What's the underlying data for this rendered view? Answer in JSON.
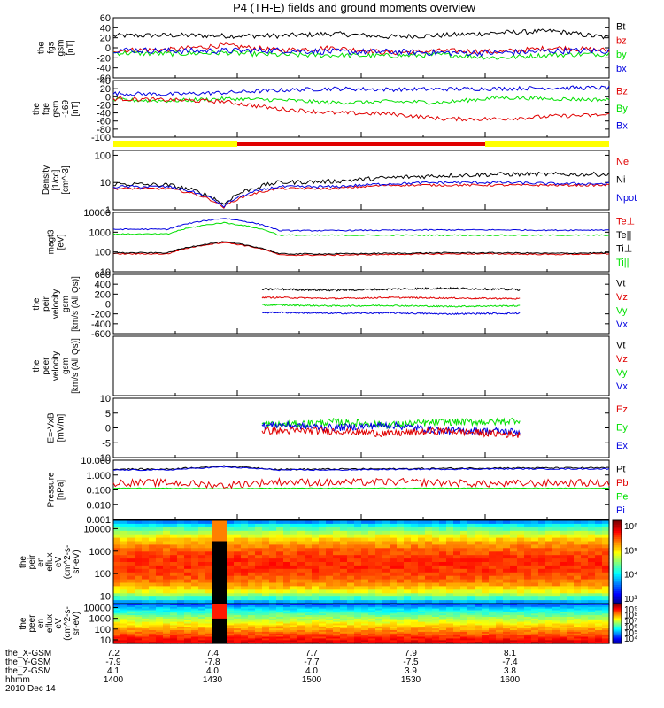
{
  "title": "P4 (TH-E) fields and ground moments overview",
  "colors": {
    "black": "#000000",
    "red": "#e00000",
    "green": "#00e000",
    "blue": "#0000e0",
    "yellow": "#ffff00",
    "bar_red": "#e00000"
  },
  "panels": [
    {
      "id": "p1",
      "ylabel": [
        "the",
        "fgs",
        "gsm",
        "[nT]"
      ],
      "ticks": [
        "60",
        "40",
        "20",
        "0",
        "-20",
        "-40",
        "-60"
      ],
      "tick_vals": [
        60,
        40,
        20,
        0,
        -20,
        -40,
        -60
      ],
      "ylim": [
        -60,
        60
      ],
      "log": false,
      "legend": [
        {
          "t": "Bt",
          "c": "black"
        },
        {
          "t": "bz",
          "c": "red"
        },
        {
          "t": "by",
          "c": "green"
        },
        {
          "t": "bx",
          "c": "blue"
        }
      ],
      "series": [
        {
          "c": "black",
          "lvl": [
            24,
            25,
            24,
            24,
            28,
            22,
            25,
            30,
            33,
            20
          ],
          "noise": 5
        },
        {
          "c": "red",
          "lvl": [
            -5,
            -4,
            5,
            -5,
            0,
            -10,
            -6,
            -8,
            0,
            -5
          ],
          "noise": 5
        },
        {
          "c": "green",
          "lvl": [
            -10,
            -12,
            -10,
            -14,
            -15,
            -16,
            -14,
            -20,
            -14,
            -12
          ],
          "noise": 5
        },
        {
          "c": "blue",
          "lvl": [
            -4,
            -6,
            -6,
            -5,
            -8,
            -8,
            -10,
            -10,
            -6,
            -6
          ],
          "noise": 6
        }
      ]
    },
    {
      "id": "p2",
      "ylabel": [
        "the",
        "fge",
        "gsm",
        "-169",
        "[nT]"
      ],
      "ticks": [
        "40",
        "20",
        "0",
        "-20",
        "-40",
        "-60",
        "-80",
        "-100"
      ],
      "tick_vals": [
        40,
        20,
        0,
        -20,
        -40,
        -60,
        -80,
        -100
      ],
      "ylim": [
        -100,
        40
      ],
      "log": false,
      "legend": [
        {
          "t": "Bz",
          "c": "red"
        },
        {
          "t": "By",
          "c": "green"
        },
        {
          "t": "Bx",
          "c": "blue"
        }
      ],
      "series": [
        {
          "c": "blue",
          "lvl": [
            8,
            6,
            10,
            16,
            20,
            18,
            19,
            20,
            22,
            22
          ],
          "noise": 5
        },
        {
          "c": "green",
          "lvl": [
            -8,
            -10,
            -5,
            -8,
            -15,
            -12,
            -14,
            -2,
            -5,
            -8
          ],
          "noise": 5
        },
        {
          "c": "red",
          "lvl": [
            -5,
            -8,
            -12,
            -30,
            -40,
            -42,
            -55,
            -55,
            -48,
            -45
          ],
          "noise": 5
        }
      ]
    },
    {
      "id": "p3",
      "ylabel": [
        "Density",
        "[1/cc]",
        "[cm^-3]"
      ],
      "ticks": [
        "100",
        "10",
        "1"
      ],
      "tick_vals": [
        100,
        10,
        1
      ],
      "ylim": [
        1,
        150
      ],
      "log": true,
      "legend": [
        {
          "t": "Ne",
          "c": "red"
        },
        {
          "t": "Ni",
          "c": "black"
        },
        {
          "t": "Npot",
          "c": "blue"
        }
      ],
      "series": [
        {
          "c": "black",
          "lvl": [
            9,
            8,
            1.5,
            10,
            11,
            15,
            18,
            20,
            20,
            20
          ],
          "noise": 0.08
        },
        {
          "c": "red",
          "lvl": [
            6,
            6,
            1.2,
            6,
            6,
            8,
            8,
            8,
            8,
            8
          ],
          "noise": 0.04
        },
        {
          "c": "blue",
          "lvl": [
            7,
            7,
            1.3,
            7,
            7,
            9,
            10,
            10,
            9,
            9
          ],
          "noise": 0.05
        }
      ]
    },
    {
      "id": "p4",
      "ylabel": [
        "magt3",
        "[eV]"
      ],
      "ticks": [
        "10000",
        "1000",
        "100",
        "10"
      ],
      "tick_vals": [
        10000,
        1000,
        100,
        10
      ],
      "ylim": [
        10,
        10000
      ],
      "log": true,
      "legend": [
        {
          "t": "Te⊥",
          "c": "red"
        },
        {
          "t": "Te||",
          "c": "black"
        },
        {
          "t": "Ti⊥",
          "c": "black"
        },
        {
          "t": "Ti||",
          "c": "green"
        }
      ],
      "series": [
        {
          "c": "blue",
          "lvl": [
            1400,
            1400,
            5000,
            1200,
            1200,
            1250,
            1300,
            1300,
            1250,
            1300
          ],
          "noise": 0.03
        },
        {
          "c": "green",
          "lvl": [
            800,
            800,
            3000,
            700,
            700,
            700,
            700,
            700,
            700,
            700
          ],
          "noise": 0.03
        },
        {
          "c": "red",
          "lvl": [
            80,
            80,
            300,
            70,
            70,
            75,
            80,
            80,
            75,
            80
          ],
          "noise": 0.03
        },
        {
          "c": "black",
          "lvl": [
            90,
            90,
            320,
            80,
            80,
            85,
            90,
            90,
            85,
            90
          ],
          "noise": 0.03
        }
      ]
    },
    {
      "id": "p5",
      "ylabel": [
        "the",
        "peir",
        "velocity",
        "gsm",
        "[km/s (All Qs)]"
      ],
      "ticks": [
        "600",
        "400",
        "200",
        "0",
        "-200",
        "-400",
        "-600"
      ],
      "tick_vals": [
        600,
        400,
        200,
        0,
        -200,
        -400,
        -600
      ],
      "ylim": [
        -600,
        600
      ],
      "log": false,
      "legend": [
        {
          "t": "Vt",
          "c": "black"
        },
        {
          "t": "Vz",
          "c": "red"
        },
        {
          "t": "Vy",
          "c": "green"
        },
        {
          "t": "Vx",
          "c": "blue"
        }
      ],
      "xstart": 0.3,
      "xend": 0.82,
      "series": [
        {
          "c": "black",
          "lvl": [
            280,
            270,
            290,
            300,
            280,
            300,
            320,
            300,
            280,
            290
          ],
          "noise": 20
        },
        {
          "c": "red",
          "lvl": [
            120,
            110,
            120,
            130,
            110,
            130,
            120,
            110,
            100,
            110
          ],
          "noise": 15
        },
        {
          "c": "green",
          "lvl": [
            -30,
            -40,
            -30,
            -20,
            -40,
            -30,
            -50,
            -40,
            -30,
            -40
          ],
          "noise": 15
        },
        {
          "c": "blue",
          "lvl": [
            -170,
            -180,
            -180,
            -170,
            -190,
            -180,
            -200,
            -190,
            -180,
            -190
          ],
          "noise": 15
        }
      ]
    },
    {
      "id": "p6",
      "ylabel": [
        "the",
        "peer",
        "velocity",
        "gsm",
        "[km/s (All Qs)]"
      ],
      "ticks": [],
      "tick_vals": [],
      "ylim": [
        -1,
        1
      ],
      "log": false,
      "legend": [
        {
          "t": "Vt",
          "c": "black"
        },
        {
          "t": "Vz",
          "c": "red"
        },
        {
          "t": "Vy",
          "c": "green"
        },
        {
          "t": "Vx",
          "c": "blue"
        }
      ],
      "series": []
    },
    {
      "id": "p7",
      "ylabel": [
        "E=-VxB",
        "[mV/m]"
      ],
      "ticks": [
        "10",
        "5",
        "0",
        "-5",
        "-10"
      ],
      "tick_vals": [
        10,
        5,
        0,
        -5,
        -10
      ],
      "ylim": [
        -10,
        10
      ],
      "log": false,
      "legend": [
        {
          "t": "Ez",
          "c": "red"
        },
        {
          "t": "Ey",
          "c": "green"
        },
        {
          "t": "Ex",
          "c": "blue"
        }
      ],
      "xstart": 0.3,
      "xend": 0.82,
      "series": [
        {
          "c": "green",
          "lvl": [
            4,
            3,
            2,
            1,
            2,
            1,
            2,
            2,
            4,
            3
          ],
          "noise": 1.2
        },
        {
          "c": "blue",
          "lvl": [
            -2,
            -1,
            0,
            1,
            0,
            1,
            -1,
            -1,
            -2,
            -1
          ],
          "noise": 1.2
        },
        {
          "c": "red",
          "lvl": [
            -3,
            -2,
            -1,
            -1,
            -1,
            -2,
            -1,
            -2,
            -3,
            -2
          ],
          "noise": 1.2
        }
      ]
    },
    {
      "id": "p8",
      "ylabel": [
        "Pressure",
        "[nPa]"
      ],
      "ticks": [
        "10.000",
        "1.000",
        "0.100",
        "0.010",
        "0.001"
      ],
      "tick_vals": [
        10,
        1,
        0.1,
        0.01,
        0.001
      ],
      "ylim": [
        0.001,
        10
      ],
      "log": true,
      "legend": [
        {
          "t": "Pt",
          "c": "black"
        },
        {
          "t": "Pb",
          "c": "red"
        },
        {
          "t": "Pe",
          "c": "green"
        },
        {
          "t": "Pi",
          "c": "blue"
        }
      ],
      "series": [
        {
          "c": "black",
          "lvl": [
            2.5,
            2.5,
            4,
            2.4,
            2.5,
            2.6,
            2.8,
            3,
            3,
            3
          ],
          "noise": 0.05
        },
        {
          "c": "blue",
          "lvl": [
            2.2,
            2.2,
            3.5,
            2.2,
            2.2,
            2.4,
            2.5,
            2.6,
            2.6,
            2.6
          ],
          "noise": 0.04
        },
        {
          "c": "red",
          "lvl": [
            0.3,
            0.3,
            0.2,
            0.35,
            0.3,
            0.35,
            0.3,
            0.25,
            0.3,
            0.28
          ],
          "noise": 0.25
        },
        {
          "c": "green",
          "lvl": [
            0.13,
            0.13,
            0.12,
            0.13,
            0.13,
            0.13,
            0.13,
            0.13,
            0.13,
            0.13
          ],
          "noise": 0.02
        }
      ]
    }
  ],
  "spectrograms": [
    {
      "id": "s1",
      "ylabel": [
        "the",
        "peir",
        "en",
        "eflux",
        "eV",
        "(cm^2-s-",
        "sr-eV)"
      ],
      "ticks": [
        "10000",
        "1000",
        "100",
        "10"
      ],
      "cbar": [
        "10⁶",
        "10⁵",
        "10⁴",
        "10³"
      ]
    },
    {
      "id": "s2",
      "ylabel": [
        "the",
        "peer",
        "en",
        "eflux",
        "eV",
        "(cm^2-s-",
        "sr-eV)"
      ],
      "ticks": [
        "10000",
        "1000",
        "100",
        "10"
      ],
      "cbar": [
        "10⁹",
        "10⁸",
        "10⁷",
        "10⁶",
        "10⁵",
        "10⁴"
      ]
    }
  ],
  "xaxis": {
    "row_labels": [
      "the_X-GSM",
      "the_Y-GSM",
      "the_Z-GSM",
      "hhmm",
      "2010 Dec 14"
    ],
    "columns": [
      {
        "frac": 0.0,
        "vals": [
          "7.2",
          "-7.9",
          "4.1",
          "1400"
        ]
      },
      {
        "frac": 0.2,
        "vals": [
          "7.4",
          "-7.8",
          "4.0",
          "1430"
        ]
      },
      {
        "frac": 0.4,
        "vals": [
          "7.7",
          "-7.7",
          "4.0",
          "1500"
        ]
      },
      {
        "frac": 0.6,
        "vals": [
          "7.9",
          "-7.5",
          "3.9",
          "1530"
        ]
      },
      {
        "frac": 0.8,
        "vals": [
          "8.1",
          "-7.4",
          "3.8",
          "1600"
        ]
      }
    ]
  },
  "chart_data": {
    "type": "line",
    "title": "P4 (TH-E) fields and ground moments overview",
    "x_ticks": [
      "1400",
      "1430",
      "1500",
      "1530",
      "1600"
    ],
    "x_label": "hhmm",
    "date": "2010 Dec 14",
    "status_bar": [
      {
        "from": "1400",
        "to": "1420",
        "state": "yellow"
      },
      {
        "from": "1420",
        "to": "1540",
        "state": "red"
      },
      {
        "from": "1540",
        "to": "1600",
        "state": "yellow"
      }
    ]
  }
}
